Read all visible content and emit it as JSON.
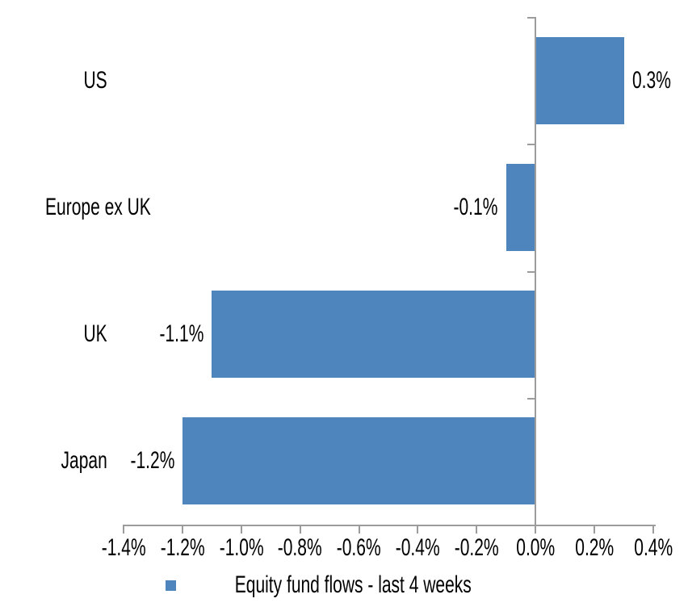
{
  "chart_data": {
    "type": "bar",
    "orientation": "horizontal",
    "title": "",
    "categories": [
      "US",
      "Europe ex UK",
      "UK",
      "Japan"
    ],
    "values": [
      0.3,
      -0.1,
      -1.1,
      -1.2
    ],
    "data_labels": [
      "0.3%",
      "-0.1%",
      "-1.1%",
      "-1.2%"
    ],
    "series": [
      {
        "name": "Equity fund flows - last 4 weeks",
        "values": [
          0.3,
          -0.1,
          -1.1,
          -1.2
        ]
      }
    ],
    "xlabel": "",
    "ylabel": "",
    "xlim": [
      -1.4,
      0.4
    ],
    "x_tick_values": [
      -1.4,
      -1.2,
      -1.0,
      -0.8,
      -0.6,
      -0.4,
      -0.2,
      0.0,
      0.2,
      0.4
    ],
    "x_tick_labels": [
      "-1.4%",
      "-1.2%",
      "-1.0%",
      "-0.8%",
      "-0.6%",
      "-0.4%",
      "-0.2%",
      "0.0%",
      "0.2%",
      "0.4%"
    ],
    "grid": false,
    "legend_position": "bottom"
  },
  "legend": {
    "label": "Equity fund flows - last 4 weeks"
  },
  "colors": {
    "bar": "#4E85BC",
    "axis": "#9C9C9C",
    "text": "#000000",
    "background": "#FFFFFF"
  }
}
